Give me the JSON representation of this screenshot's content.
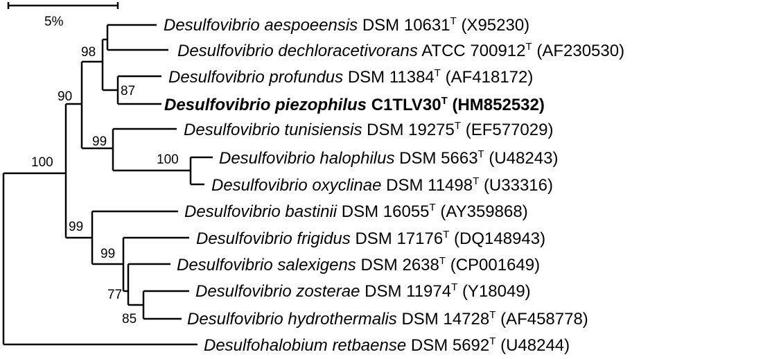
{
  "scale_bar": {
    "label": "5%"
  },
  "taxa": [
    {
      "genus_species": "Desulfovibrio aespoeensis",
      "strain": "DSM 10631",
      "type_mark": "T",
      "accession": "(X95230)",
      "bold": false
    },
    {
      "genus_species": "Desulfovibrio dechloracetivorans",
      "strain": "ATCC 700912",
      "type_mark": "T",
      "accession": "(AF230530)",
      "bold": false
    },
    {
      "genus_species": "Desulfovibrio profundus",
      "strain": "DSM 11384",
      "type_mark": "T",
      "accession": "(AF418172)",
      "bold": false
    },
    {
      "genus_species": "Desulfovibrio piezophilus",
      "strain": "C1TLV30",
      "type_mark": "T",
      "accession": "(HM852532)",
      "bold": true
    },
    {
      "genus_species": "Desulfovibrio tunisiensis",
      "strain": "DSM 19275",
      "type_mark": "T",
      "accession": "(EF577029)",
      "bold": false
    },
    {
      "genus_species": "Desulfovibrio halophilus",
      "strain": "DSM 5663",
      "type_mark": "T",
      "accession": "(U48243)",
      "bold": false
    },
    {
      "genus_species": "Desulfovibrio oxyclinae",
      "strain": "DSM 11498",
      "type_mark": "T",
      "accession": "(U33316)",
      "bold": false
    },
    {
      "genus_species": "Desulfovibrio bastinii",
      "strain": "DSM 16055",
      "type_mark": "T",
      "accession": "(AY359868)",
      "bold": false
    },
    {
      "genus_species": "Desulfovibrio frigidus",
      "strain": "DSM 17176",
      "type_mark": "T",
      "accession": "(DQ148943)",
      "bold": false
    },
    {
      "genus_species": "Desulfovibrio salexigens",
      "strain": "DSM 2638",
      "type_mark": "T",
      "accession": "(CP001649)",
      "bold": false
    },
    {
      "genus_species": "Desulfovibrio zosterae",
      "strain": "DSM 11974",
      "type_mark": "T",
      "accession": "(Y18049)",
      "bold": false
    },
    {
      "genus_species": "Desulfovibrio hydrothermalis",
      "strain": "DSM 14728",
      "type_mark": "T",
      "accession": "(AF458778)",
      "bold": false
    },
    {
      "genus_species": "Desulfohalobium retbaense",
      "strain": "DSM 5692",
      "type_mark": "T",
      "accession": "(U48244)",
      "bold": false
    }
  ],
  "bootstrap": {
    "aespoeensis_dechloracetivorans": "98",
    "profundus_piezophilus": "87",
    "upper_clade": "90",
    "tunisiensis_clade": "99",
    "halophilus_oxyclinae": "100",
    "desulfovibrio_root": "100",
    "lower_clade": "99",
    "frigidus_clade": "99",
    "salexigens_clade": "77",
    "zosterae_hydrothermalis": "85"
  }
}
